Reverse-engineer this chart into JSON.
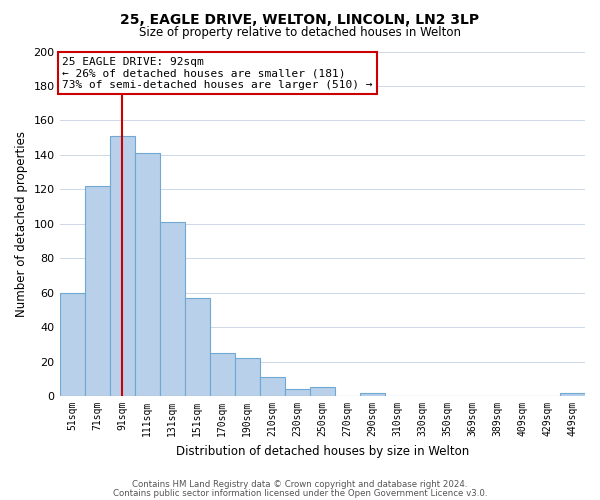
{
  "title": "25, EAGLE DRIVE, WELTON, LINCOLN, LN2 3LP",
  "subtitle": "Size of property relative to detached houses in Welton",
  "xlabel": "Distribution of detached houses by size in Welton",
  "ylabel": "Number of detached properties",
  "bar_labels": [
    "51sqm",
    "71sqm",
    "91sqm",
    "111sqm",
    "131sqm",
    "151sqm",
    "170sqm",
    "190sqm",
    "210sqm",
    "230sqm",
    "250sqm",
    "270sqm",
    "290sqm",
    "310sqm",
    "330sqm",
    "350sqm",
    "369sqm",
    "389sqm",
    "409sqm",
    "429sqm",
    "449sqm"
  ],
  "bar_values": [
    60,
    122,
    151,
    141,
    101,
    57,
    25,
    22,
    11,
    4,
    5,
    0,
    2,
    0,
    0,
    0,
    0,
    0,
    0,
    0,
    2
  ],
  "bar_color": "#b8d0ea",
  "bar_edge_color": "#6fa8d0",
  "vline_x": 2,
  "vline_color": "#cc0000",
  "ylim": [
    0,
    200
  ],
  "yticks": [
    0,
    20,
    40,
    60,
    80,
    100,
    120,
    140,
    160,
    180,
    200
  ],
  "annotation_text": "25 EAGLE DRIVE: 92sqm\n← 26% of detached houses are smaller (181)\n73% of semi-detached houses are larger (510) →",
  "annotation_box_color": "#ffffff",
  "annotation_box_edge": "#cc0000",
  "footer_line1": "Contains HM Land Registry data © Crown copyright and database right 2024.",
  "footer_line2": "Contains public sector information licensed under the Open Government Licence v3.0.",
  "bg_color": "#ffffff",
  "grid_color": "#cdd8e8"
}
